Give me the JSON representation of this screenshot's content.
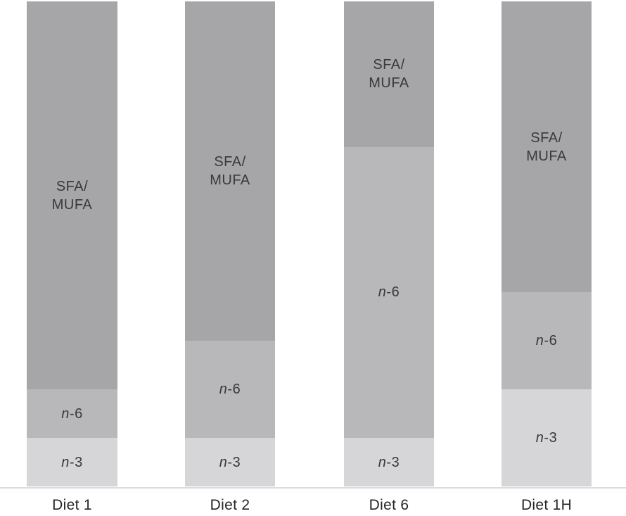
{
  "figure": {
    "background_color": "#ffffff",
    "axis_line_color": "#dcdcde",
    "segment_label_color": "#39393b",
    "category_label_color": "#262628"
  },
  "chart_data": {
    "type": "bar",
    "subtype": "stacked-100-percent",
    "orientation": "vertical",
    "title": "",
    "xlabel": "",
    "ylabel": "",
    "ylim": [
      0,
      100
    ],
    "grid": false,
    "legend_position": "none (labels drawn inside segments)",
    "categories": [
      "Diet 1",
      "Diet 2",
      "Diet 6",
      "Diet 1H"
    ],
    "series": [
      {
        "name": "n-3",
        "label": {
          "italic": "n",
          "rest": "-3"
        },
        "color": "#d6d6d8",
        "values": [
          10,
          10,
          10,
          20
        ]
      },
      {
        "name": "n-6",
        "label": {
          "italic": "n",
          "rest": "-6"
        },
        "color": "#b8b8ba",
        "values": [
          10,
          20,
          60,
          20
        ]
      },
      {
        "name": "SFA/MUFA",
        "label_lines": [
          "SFA/",
          "MUFA"
        ],
        "color": "#a6a6a8",
        "values": [
          80,
          70,
          30,
          60
        ]
      }
    ]
  }
}
